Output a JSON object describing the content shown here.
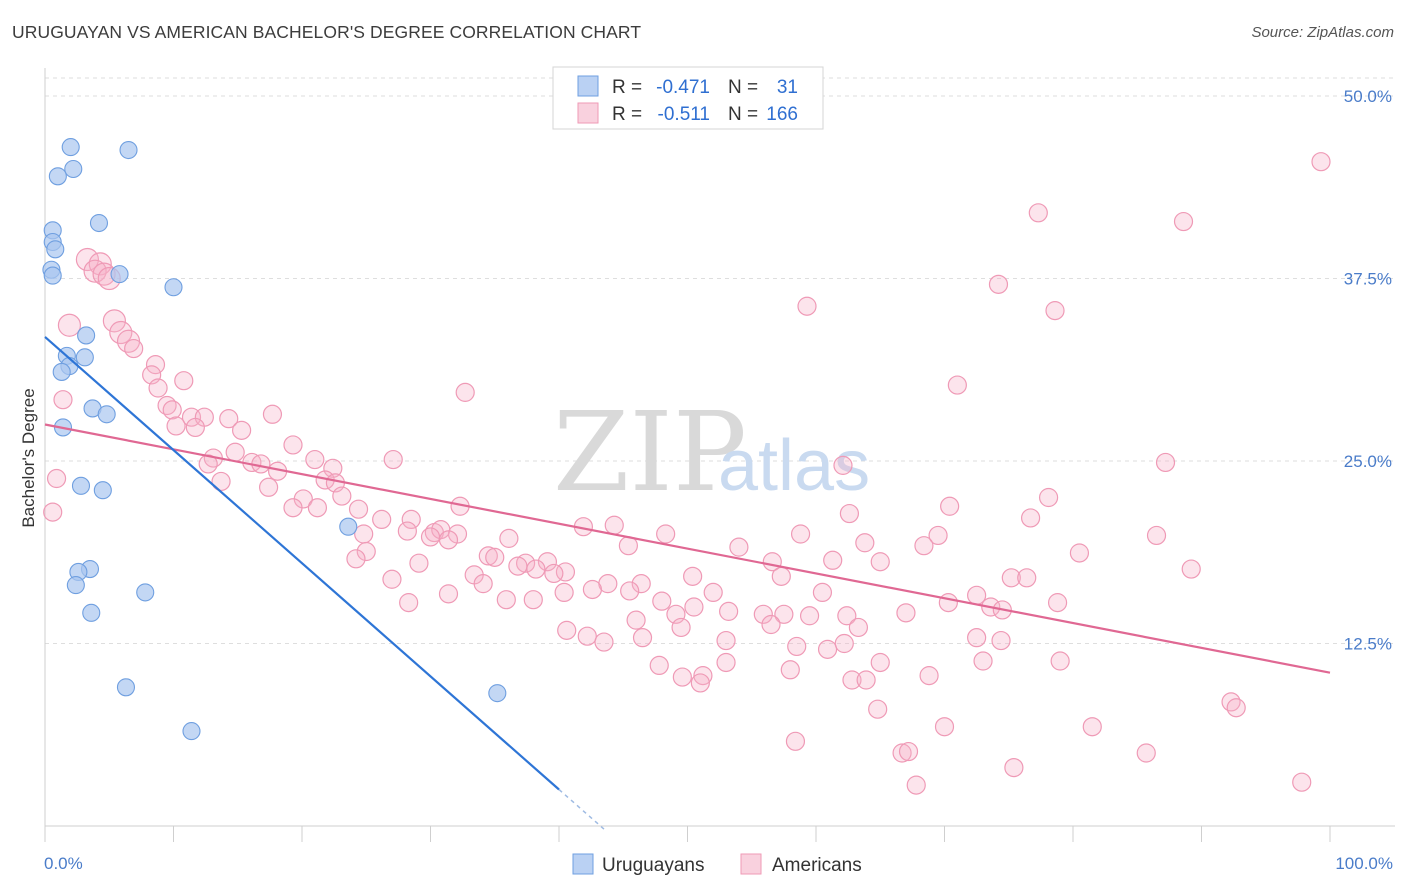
{
  "title": "URUGUAYAN VS AMERICAN BACHELOR'S DEGREE CORRELATION CHART",
  "source": "Source: ZipAtlas.com",
  "watermark": {
    "zip": "ZIP",
    "atlas": "atlas"
  },
  "chart_data": {
    "type": "scatter",
    "title": "URUGUAYAN VS AMERICAN BACHELOR'S DEGREE CORRELATION CHART",
    "xlabel": "",
    "ylabel": "Bachelor's Degree",
    "xlim": [
      0,
      100
    ],
    "ylim": [
      0,
      50
    ],
    "x_ticks_labels": [
      "0.0%",
      "100.0%"
    ],
    "y_ticks": [
      12.5,
      25.0,
      37.5,
      50.0
    ],
    "y_tick_labels": [
      "12.5%",
      "25.0%",
      "37.5%",
      "50.0%"
    ],
    "grid": "horizontal dashed",
    "legend_position": "top-center",
    "colors": {
      "uruguayans": "#a9c6f0",
      "uruguayans_line": "#2e75d6",
      "americans": "#f5b3c8",
      "americans_line": "#e06893"
    },
    "legend": {
      "rows": [
        {
          "r_label": "R =",
          "r_value": "-0.471",
          "n_label": "N =",
          "n_value": "31"
        },
        {
          "r_label": "R =",
          "r_value": "-0.511",
          "n_label": "N =",
          "n_value": "166"
        }
      ]
    },
    "series": [
      {
        "name": "Uruguayans",
        "trend": {
          "x0": 0,
          "y0": 33.5,
          "x1": 40,
          "y1": 2.5,
          "dash_to_x": 43.5
        },
        "points": [
          [
            2.0,
            46.5
          ],
          [
            6.5,
            46.3
          ],
          [
            2.2,
            45.0
          ],
          [
            1.0,
            44.5
          ],
          [
            4.2,
            41.3
          ],
          [
            0.6,
            40.8
          ],
          [
            0.6,
            40.0
          ],
          [
            0.8,
            39.5
          ],
          [
            0.5,
            38.1
          ],
          [
            0.6,
            37.7
          ],
          [
            5.8,
            37.8
          ],
          [
            10.0,
            36.9
          ],
          [
            3.2,
            33.6
          ],
          [
            1.7,
            32.2
          ],
          [
            3.1,
            32.1
          ],
          [
            1.9,
            31.5
          ],
          [
            1.3,
            31.1
          ],
          [
            3.7,
            28.6
          ],
          [
            4.8,
            28.2
          ],
          [
            1.4,
            27.3
          ],
          [
            2.8,
            23.3
          ],
          [
            4.5,
            23.0
          ],
          [
            23.6,
            20.5
          ],
          [
            3.5,
            17.6
          ],
          [
            2.6,
            17.4
          ],
          [
            2.4,
            16.5
          ],
          [
            7.8,
            16.0
          ],
          [
            3.6,
            14.6
          ],
          [
            6.3,
            9.5
          ],
          [
            11.4,
            6.5
          ],
          [
            35.2,
            9.1
          ]
        ]
      },
      {
        "name": "Americans",
        "trend": {
          "x0": 0,
          "y0": 27.5,
          "x1": 100,
          "y1": 10.5
        },
        "points": [
          [
            99.3,
            45.5
          ],
          [
            77.3,
            42.0
          ],
          [
            88.6,
            41.4
          ],
          [
            3.3,
            38.8
          ],
          [
            4.3,
            38.5
          ],
          [
            3.9,
            38.0
          ],
          [
            4.6,
            37.8
          ],
          [
            5.0,
            37.5
          ],
          [
            74.2,
            37.1
          ],
          [
            59.3,
            35.6
          ],
          [
            78.6,
            35.3
          ],
          [
            1.9,
            34.3
          ],
          [
            5.4,
            34.6
          ],
          [
            5.9,
            33.8
          ],
          [
            6.5,
            33.2
          ],
          [
            6.9,
            32.7
          ],
          [
            8.6,
            31.6
          ],
          [
            8.3,
            30.9
          ],
          [
            10.8,
            30.5
          ],
          [
            71.0,
            30.2
          ],
          [
            8.8,
            30.0
          ],
          [
            32.7,
            29.7
          ],
          [
            9.5,
            28.8
          ],
          [
            1.4,
            29.2
          ],
          [
            9.9,
            28.5
          ],
          [
            11.4,
            28.0
          ],
          [
            12.4,
            28.0
          ],
          [
            14.3,
            27.9
          ],
          [
            17.7,
            28.2
          ],
          [
            10.2,
            27.4
          ],
          [
            11.7,
            27.3
          ],
          [
            15.3,
            27.1
          ],
          [
            19.3,
            26.1
          ],
          [
            14.8,
            25.6
          ],
          [
            13.1,
            25.2
          ],
          [
            12.7,
            24.8
          ],
          [
            16.1,
            24.9
          ],
          [
            16.8,
            24.8
          ],
          [
            21.0,
            25.1
          ],
          [
            27.1,
            25.1
          ],
          [
            62.1,
            24.7
          ],
          [
            87.2,
            24.9
          ],
          [
            22.4,
            24.5
          ],
          [
            18.1,
            24.3
          ],
          [
            0.9,
            23.8
          ],
          [
            13.7,
            23.6
          ],
          [
            17.4,
            23.2
          ],
          [
            21.8,
            23.7
          ],
          [
            22.6,
            23.5
          ],
          [
            23.1,
            22.6
          ],
          [
            20.1,
            22.4
          ],
          [
            24.4,
            21.7
          ],
          [
            19.3,
            21.8
          ],
          [
            21.2,
            21.8
          ],
          [
            0.6,
            21.5
          ],
          [
            78.1,
            22.5
          ],
          [
            32.3,
            21.9
          ],
          [
            70.4,
            21.9
          ],
          [
            26.2,
            21.0
          ],
          [
            28.5,
            21.0
          ],
          [
            76.7,
            21.1
          ],
          [
            44.3,
            20.6
          ],
          [
            41.9,
            20.5
          ],
          [
            24.8,
            20.0
          ],
          [
            28.2,
            20.2
          ],
          [
            30.3,
            20.1
          ],
          [
            30.8,
            20.3
          ],
          [
            32.1,
            20.0
          ],
          [
            48.3,
            20.0
          ],
          [
            58.8,
            20.0
          ],
          [
            62.6,
            21.4
          ],
          [
            69.5,
            19.9
          ],
          [
            86.5,
            19.9
          ],
          [
            30.0,
            19.8
          ],
          [
            36.1,
            19.7
          ],
          [
            31.4,
            19.6
          ],
          [
            63.8,
            19.4
          ],
          [
            68.4,
            19.2
          ],
          [
            45.4,
            19.2
          ],
          [
            54.0,
            19.1
          ],
          [
            25.0,
            18.8
          ],
          [
            34.5,
            18.5
          ],
          [
            24.2,
            18.3
          ],
          [
            35.0,
            18.4
          ],
          [
            39.1,
            18.1
          ],
          [
            37.4,
            18.0
          ],
          [
            56.6,
            18.1
          ],
          [
            61.3,
            18.2
          ],
          [
            80.5,
            18.7
          ],
          [
            65.0,
            18.1
          ],
          [
            29.1,
            18.0
          ],
          [
            36.8,
            17.8
          ],
          [
            38.2,
            17.6
          ],
          [
            40.5,
            17.4
          ],
          [
            33.4,
            17.2
          ],
          [
            39.6,
            17.3
          ],
          [
            50.4,
            17.1
          ],
          [
            57.3,
            17.1
          ],
          [
            75.2,
            17.0
          ],
          [
            76.4,
            17.0
          ],
          [
            89.2,
            17.6
          ],
          [
            27.0,
            16.9
          ],
          [
            34.1,
            16.6
          ],
          [
            43.8,
            16.6
          ],
          [
            46.4,
            16.6
          ],
          [
            42.6,
            16.2
          ],
          [
            45.5,
            16.1
          ],
          [
            52.0,
            16.0
          ],
          [
            60.5,
            16.0
          ],
          [
            40.4,
            16.0
          ],
          [
            31.4,
            15.9
          ],
          [
            38.0,
            15.5
          ],
          [
            72.5,
            15.8
          ],
          [
            35.9,
            15.5
          ],
          [
            28.3,
            15.3
          ],
          [
            48.0,
            15.4
          ],
          [
            70.3,
            15.3
          ],
          [
            73.6,
            15.0
          ],
          [
            78.8,
            15.3
          ],
          [
            50.5,
            15.0
          ],
          [
            53.2,
            14.7
          ],
          [
            49.1,
            14.5
          ],
          [
            55.9,
            14.5
          ],
          [
            57.5,
            14.5
          ],
          [
            59.5,
            14.4
          ],
          [
            62.4,
            14.4
          ],
          [
            67.0,
            14.6
          ],
          [
            74.5,
            14.8
          ],
          [
            46.0,
            14.1
          ],
          [
            56.5,
            13.8
          ],
          [
            49.5,
            13.6
          ],
          [
            63.3,
            13.6
          ],
          [
            40.6,
            13.4
          ],
          [
            42.2,
            13.0
          ],
          [
            46.5,
            12.9
          ],
          [
            53.0,
            12.7
          ],
          [
            58.5,
            12.3
          ],
          [
            60.9,
            12.1
          ],
          [
            62.2,
            12.5
          ],
          [
            72.5,
            12.9
          ],
          [
            74.4,
            12.7
          ],
          [
            43.5,
            12.6
          ],
          [
            47.8,
            11.0
          ],
          [
            53.0,
            11.2
          ],
          [
            73.0,
            11.3
          ],
          [
            79.0,
            11.3
          ],
          [
            65.0,
            11.2
          ],
          [
            49.6,
            10.2
          ],
          [
            51.2,
            10.3
          ],
          [
            58.0,
            10.7
          ],
          [
            62.8,
            10.0
          ],
          [
            63.9,
            10.0
          ],
          [
            68.8,
            10.3
          ],
          [
            51.0,
            9.8
          ],
          [
            64.8,
            8.0
          ],
          [
            92.3,
            8.5
          ],
          [
            92.7,
            8.1
          ],
          [
            70.0,
            6.8
          ],
          [
            81.5,
            6.8
          ],
          [
            58.4,
            5.8
          ],
          [
            66.7,
            5.0
          ],
          [
            67.2,
            5.1
          ],
          [
            85.7,
            5.0
          ],
          [
            75.4,
            4.0
          ],
          [
            67.8,
            2.8
          ],
          [
            97.8,
            3.0
          ]
        ]
      }
    ]
  },
  "bottom_legend": {
    "items": [
      "Uruguayans",
      "Americans"
    ]
  }
}
